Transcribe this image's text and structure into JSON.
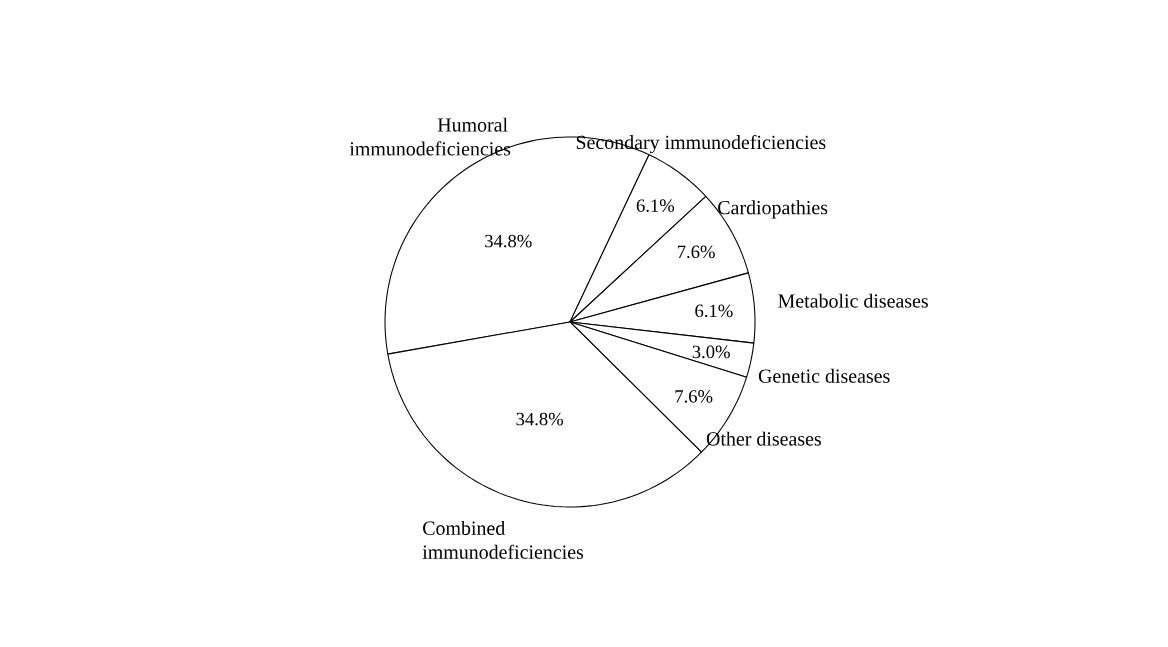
{
  "chart_data": {
    "type": "pie",
    "categories": [
      "Humoral immunodeficiencies",
      "Secondary immunodeficiencies",
      "Cardiopathies",
      "Metabolic diseases",
      "Genetic diseases",
      "Other diseases",
      "Combined immunodeficiencies"
    ],
    "values": [
      34.8,
      6.1,
      7.6,
      6.1,
      3.0,
      7.6,
      34.8
    ],
    "value_labels": [
      "34.8%",
      "6.1%",
      "7.6%",
      "6.1%",
      "3.0%",
      "7.6%",
      "34.8%"
    ],
    "colors": [
      "#ffffff",
      "#ffffff",
      "#ffffff",
      "#ffffff",
      "#ffffff",
      "#ffffff",
      "#ffffff"
    ]
  }
}
